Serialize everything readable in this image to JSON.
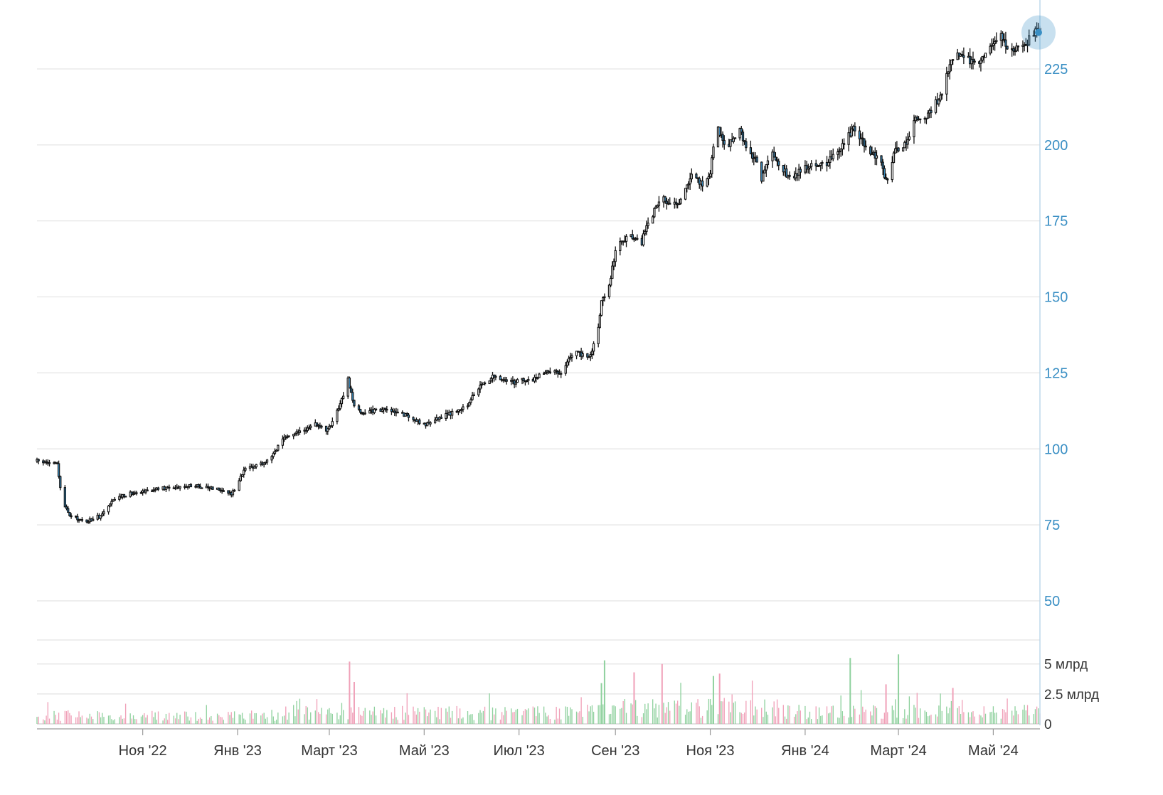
{
  "chart_data": {
    "type": "candlestick",
    "price_axis": {
      "ylim": [
        50,
        243
      ],
      "ticks": [
        "50",
        "75",
        "100",
        "125",
        "150",
        "175",
        "200",
        "225"
      ]
    },
    "volume_axis": {
      "ylim": [
        0,
        7000000000
      ],
      "ticks": [
        {
          "value": 0,
          "label": "0"
        },
        {
          "value": 2500000000,
          "label": "2.5 млрд"
        },
        {
          "value": 5000000000,
          "label": "5 млрд"
        }
      ]
    },
    "x_axis": {
      "range": [
        "2022-08-25",
        "2024-05-31"
      ],
      "ticks": [
        {
          "date": "2022-11-01",
          "label": "Ноя '22"
        },
        {
          "date": "2023-01-01",
          "label": "Янв '23"
        },
        {
          "date": "2023-03-01",
          "label": "Март '23"
        },
        {
          "date": "2023-05-01",
          "label": "Май '23"
        },
        {
          "date": "2023-07-01",
          "label": "Июл '23"
        },
        {
          "date": "2023-09-01",
          "label": "Сен '23"
        },
        {
          "date": "2023-11-01",
          "label": "Ноя '23"
        },
        {
          "date": "2024-01-01",
          "label": "Янв '24"
        },
        {
          "date": "2024-03-01",
          "label": "Март '24"
        },
        {
          "date": "2024-05-01",
          "label": "Май '24"
        }
      ]
    },
    "price_path": [
      [
        "2022-08-25",
        96
      ],
      [
        "2022-09-07",
        95
      ],
      [
        "2022-09-10",
        83
      ],
      [
        "2022-09-15",
        78
      ],
      [
        "2022-09-25",
        76
      ],
      [
        "2022-10-05",
        78
      ],
      [
        "2022-10-15",
        84
      ],
      [
        "2022-10-28",
        86
      ],
      [
        "2022-11-15",
        87
      ],
      [
        "2022-12-01",
        88
      ],
      [
        "2022-12-20",
        87
      ],
      [
        "2022-12-28",
        85
      ],
      [
        "2023-01-05",
        93
      ],
      [
        "2023-01-20",
        96
      ],
      [
        "2023-02-01",
        104
      ],
      [
        "2023-02-12",
        106
      ],
      [
        "2023-02-20",
        108
      ],
      [
        "2023-02-28",
        106
      ],
      [
        "2023-03-10",
        117
      ],
      [
        "2023-03-13",
        123
      ],
      [
        "2023-03-17",
        114
      ],
      [
        "2023-03-22",
        112
      ],
      [
        "2023-04-05",
        113
      ],
      [
        "2023-04-20",
        111
      ],
      [
        "2023-05-01",
        108
      ],
      [
        "2023-05-15",
        111
      ],
      [
        "2023-05-28",
        114
      ],
      [
        "2023-06-05",
        120
      ],
      [
        "2023-06-15",
        124
      ],
      [
        "2023-06-28",
        122
      ],
      [
        "2023-07-10",
        123
      ],
      [
        "2023-07-20",
        126
      ],
      [
        "2023-07-28",
        125
      ],
      [
        "2023-08-05",
        132
      ],
      [
        "2023-08-15",
        130
      ],
      [
        "2023-08-20",
        137
      ],
      [
        "2023-08-23",
        148
      ],
      [
        "2023-08-28",
        154
      ],
      [
        "2023-09-02",
        168
      ],
      [
        "2023-09-10",
        170
      ],
      [
        "2023-09-18",
        168
      ],
      [
        "2023-09-22",
        175
      ],
      [
        "2023-10-01",
        182
      ],
      [
        "2023-10-12",
        181
      ],
      [
        "2023-10-20",
        190
      ],
      [
        "2023-10-28",
        187
      ],
      [
        "2023-11-01",
        191
      ],
      [
        "2023-11-05",
        206
      ],
      [
        "2023-11-12",
        199
      ],
      [
        "2023-11-20",
        205
      ],
      [
        "2023-11-25",
        198
      ],
      [
        "2023-11-30",
        196
      ],
      [
        "2023-12-04",
        188
      ],
      [
        "2023-12-10",
        199
      ],
      [
        "2023-12-16",
        193
      ],
      [
        "2023-12-22",
        189
      ],
      [
        "2024-01-01",
        193
      ],
      [
        "2024-01-15",
        194
      ],
      [
        "2024-01-25",
        200
      ],
      [
        "2024-02-01",
        205
      ],
      [
        "2024-02-10",
        199
      ],
      [
        "2024-02-18",
        195
      ],
      [
        "2024-02-22",
        188
      ],
      [
        "2024-02-28",
        198
      ],
      [
        "2024-03-05",
        200
      ],
      [
        "2024-03-12",
        208
      ],
      [
        "2024-03-20",
        210
      ],
      [
        "2024-03-28",
        216
      ],
      [
        "2024-04-03",
        226
      ],
      [
        "2024-04-08",
        230
      ],
      [
        "2024-04-15",
        228
      ],
      [
        "2024-04-22",
        226
      ],
      [
        "2024-04-28",
        232
      ],
      [
        "2024-05-05",
        236
      ],
      [
        "2024-05-12",
        231
      ],
      [
        "2024-05-20",
        232
      ],
      [
        "2024-05-27",
        237
      ],
      [
        "2024-05-31",
        237
      ]
    ],
    "volume_spikes": [
      {
        "date": "2023-03-14",
        "value": 5200000000,
        "direction": "down"
      },
      {
        "date": "2023-03-17",
        "value": 3500000000,
        "direction": "down"
      },
      {
        "date": "2023-08-23",
        "value": 3400000000,
        "direction": "up"
      },
      {
        "date": "2023-08-25",
        "value": 5300000000,
        "direction": "up"
      },
      {
        "date": "2023-09-13",
        "value": 4300000000,
        "direction": "down"
      },
      {
        "date": "2023-10-01",
        "value": 5000000000,
        "direction": "down"
      },
      {
        "date": "2023-11-03",
        "value": 4000000000,
        "direction": "up"
      },
      {
        "date": "2023-11-07",
        "value": 4200000000,
        "direction": "down"
      },
      {
        "date": "2024-01-30",
        "value": 5500000000,
        "direction": "up"
      },
      {
        "date": "2024-03-01",
        "value": 5800000000,
        "direction": "up"
      },
      {
        "date": "2024-02-22",
        "value": 3300000000,
        "direction": "down"
      },
      {
        "date": "2024-04-05",
        "value": 3000000000,
        "direction": "down"
      }
    ],
    "up_color": "#8fd19e",
    "down_color": "#f0a0b8",
    "candle_up_fill": "#ffffff",
    "candle_down_fill": "#3a8fc4",
    "accent_color": "#3a8fc4",
    "grid": true
  }
}
